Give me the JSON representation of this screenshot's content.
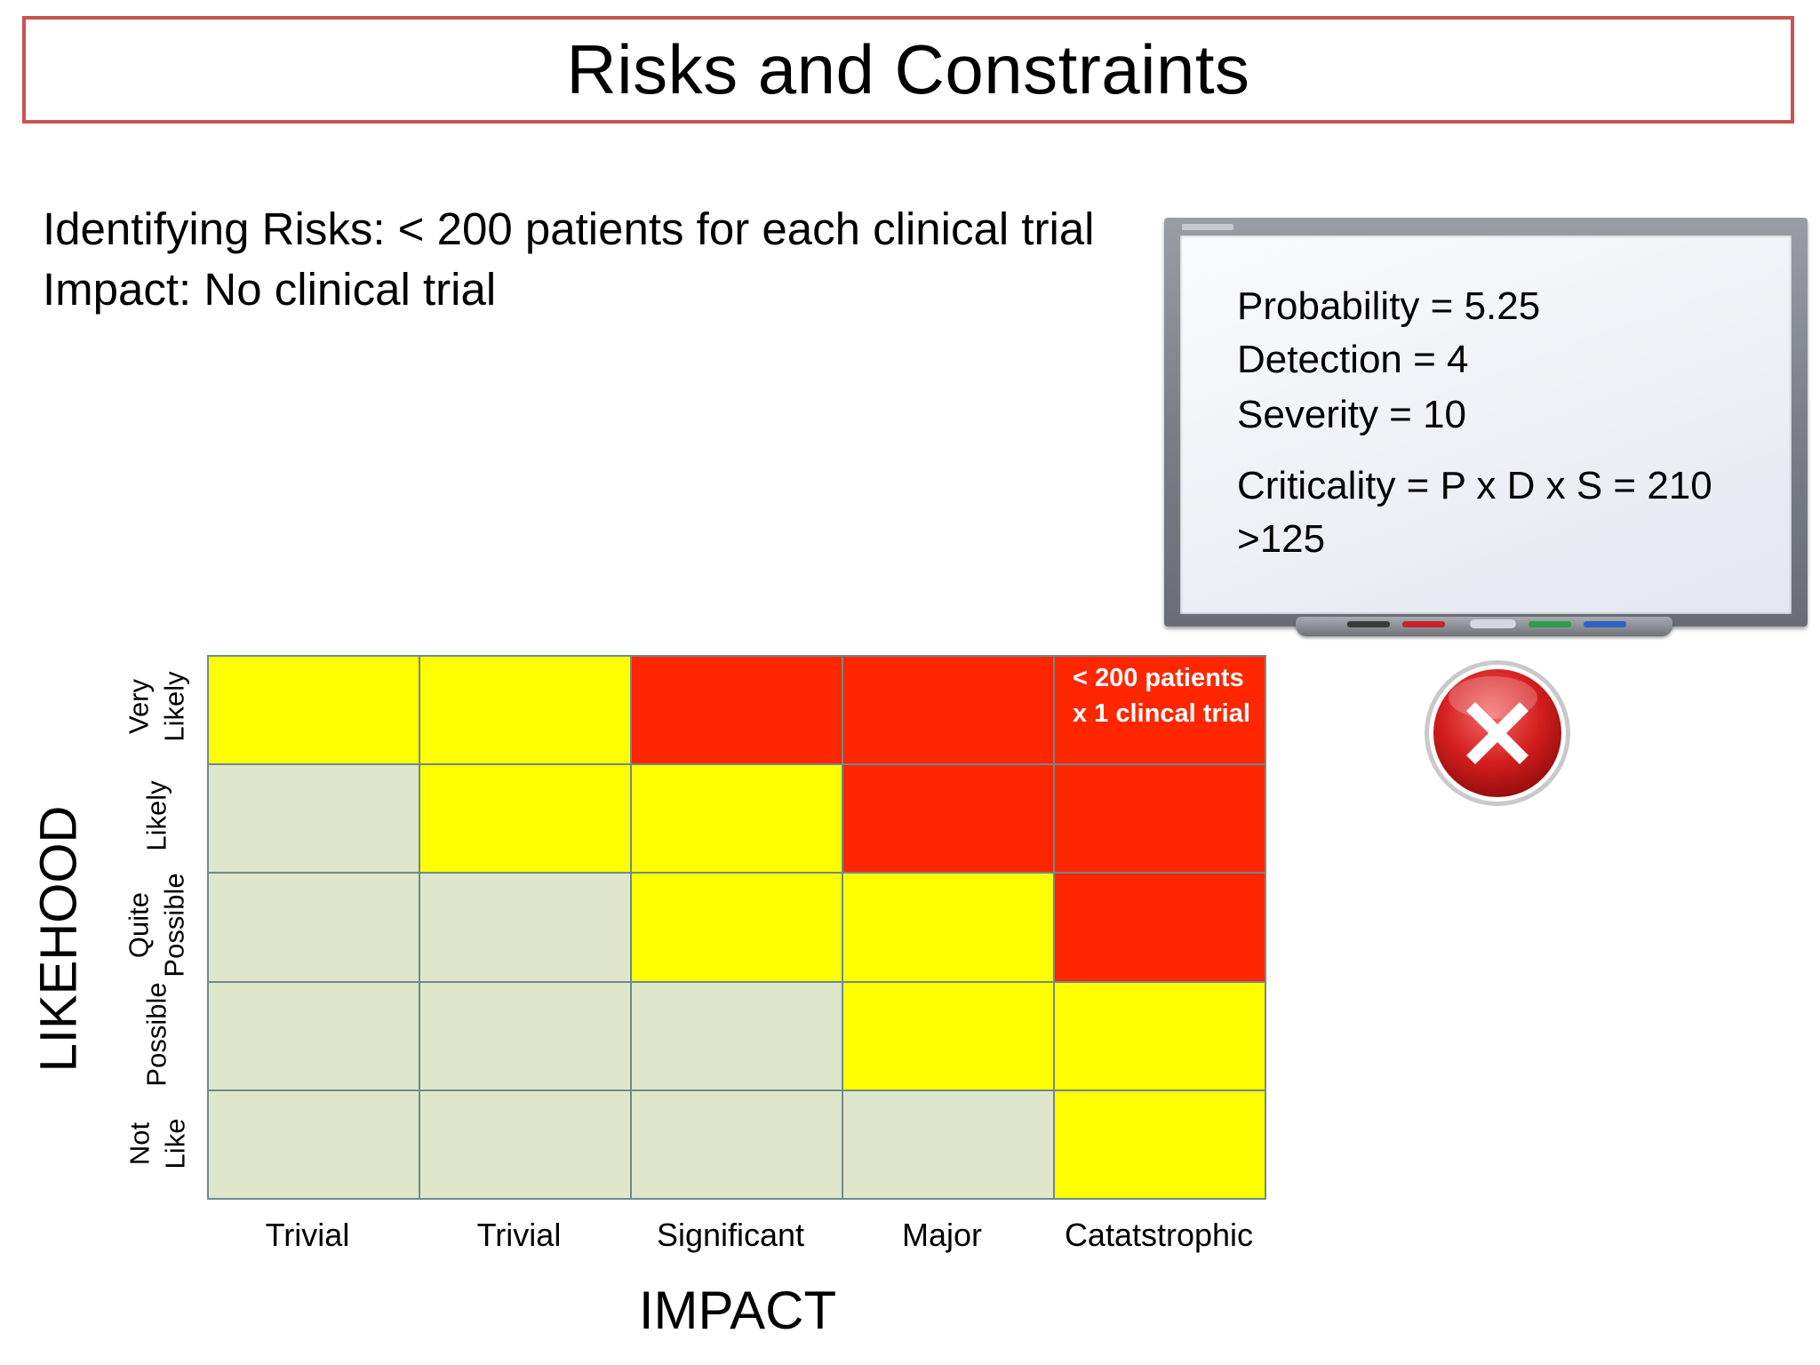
{
  "title": "Risks and Constraints",
  "intro": {
    "line1": "Identifying Risks: < 200 patients for each clinical trial",
    "line2": "Impact: No clinical trial"
  },
  "whiteboard": {
    "probability": "Probability = 5.25",
    "detection": "Detection = 4",
    "severity": "Severity = 10",
    "criticality": "Criticality = P x D x S = 210",
    "threshold": ">125"
  },
  "status_icon": "red-x-icon",
  "matrix": {
    "x_axis_label": "IMPACT",
    "y_axis_label": "LIKEHOOD",
    "columns": [
      "Trivial",
      "Trivial",
      "Significant",
      "Major",
      "Catatstrophic"
    ],
    "rows": [
      "Very\nLikely",
      "Likely",
      "Quite\nPossible",
      "Possible",
      "Not\nLike"
    ],
    "cells": [
      [
        "yellow",
        "yellow",
        "red",
        "red",
        "red"
      ],
      [
        "green",
        "yellow",
        "yellow",
        "red",
        "red"
      ],
      [
        "green",
        "green",
        "yellow",
        "yellow",
        "red"
      ],
      [
        "green",
        "green",
        "green",
        "yellow",
        "yellow"
      ],
      [
        "green",
        "green",
        "green",
        "green",
        "yellow"
      ]
    ],
    "note": "< 200 patients x 1 clincal trial",
    "colors": {
      "green": "#dee7cc",
      "yellow": "#ffff00",
      "red": "#ff2600"
    }
  }
}
